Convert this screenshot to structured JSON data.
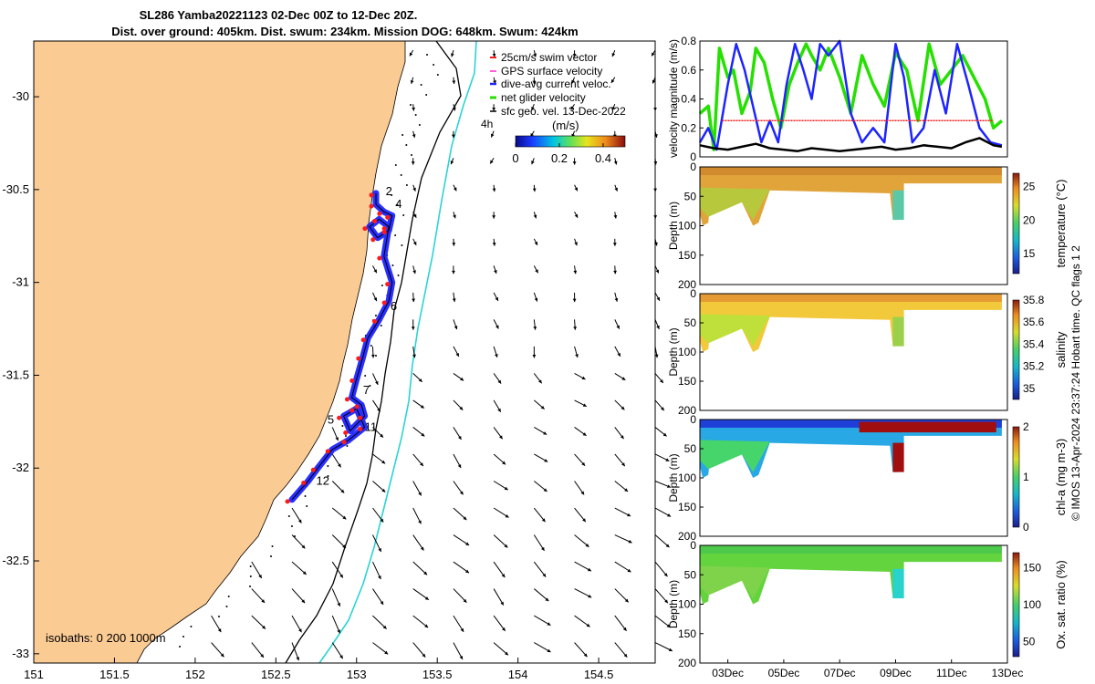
{
  "header": {
    "line1": "SL286 Yamba20221123 02-Dec 00Z to 12-Dec 20Z.",
    "line2": "Dist. over ground: 405km. Dist. swum: 234km. Mission DOG: 648km. Swum: 424km"
  },
  "colors": {
    "land": "#fbcb94",
    "track": "#1d24ff",
    "swim": "#ff1a1a",
    "net": "#25e000",
    "isobath1000": "#2cd3d3",
    "isobath200": "#000000"
  },
  "chart_data": [
    {
      "type": "scatter",
      "name": "map",
      "title": "glider track map",
      "xlim": [
        151,
        154.85
      ],
      "ylim": [
        -33.05,
        -29.7
      ],
      "xticks": [
        "151",
        "151.5",
        "152",
        "152.5",
        "153",
        "153.5",
        "154",
        "154.5"
      ],
      "yticks": [
        "-30",
        "-30.5",
        "-31",
        "-31.5",
        "-32",
        "-32.5",
        "-33"
      ],
      "legend": [
        "25cm/s swim vector",
        "GPS surface velocity",
        "dive-avg current veloc.",
        "net glider velocity",
        "sfc geo. vel. 13-Dec-2022"
      ],
      "colorbar": {
        "label": "(m/s)",
        "ticks": [
          "0",
          "0.2",
          "0.4"
        ],
        "range": [
          0,
          0.5
        ]
      },
      "isobath_note": "isobaths: 0   200  1000m",
      "time_label": "4h",
      "track_labels": [
        {
          "label": "2",
          "lon": 153.18,
          "lat": -30.53
        },
        {
          "label": "4",
          "lon": 153.24,
          "lat": -30.6
        },
        {
          "label": "6",
          "lon": 153.21,
          "lat": -31.15
        },
        {
          "label": "7",
          "lon": 153.04,
          "lat": -31.6
        },
        {
          "label": "5",
          "lon": 152.82,
          "lat": -31.76
        },
        {
          "label": "11",
          "lon": 153.05,
          "lat": -31.8
        },
        {
          "label": "12",
          "lon": 152.75,
          "lat": -32.09
        }
      ],
      "track": [
        [
          153.12,
          -30.52
        ],
        [
          153.12,
          -30.58
        ],
        [
          153.17,
          -30.62
        ],
        [
          153.22,
          -30.64
        ],
        [
          153.2,
          -30.72
        ],
        [
          153.13,
          -30.76
        ],
        [
          153.08,
          -30.7
        ],
        [
          153.14,
          -30.66
        ],
        [
          153.2,
          -30.7
        ],
        [
          153.17,
          -30.86
        ],
        [
          153.22,
          -31.0
        ],
        [
          153.2,
          -31.1
        ],
        [
          153.14,
          -31.2
        ],
        [
          153.07,
          -31.3
        ],
        [
          153.04,
          -31.4
        ],
        [
          153.0,
          -31.52
        ],
        [
          152.97,
          -31.62
        ],
        [
          153.03,
          -31.66
        ],
        [
          153.05,
          -31.72
        ],
        [
          152.96,
          -31.8
        ],
        [
          152.92,
          -31.72
        ],
        [
          153.0,
          -31.68
        ],
        [
          153.05,
          -31.78
        ],
        [
          152.95,
          -31.85
        ],
        [
          152.85,
          -31.9
        ],
        [
          152.76,
          -32.0
        ],
        [
          152.7,
          -32.07
        ],
        [
          152.6,
          -32.17
        ]
      ]
    },
    {
      "type": "line",
      "name": "velocity-panel",
      "ylabel": "velocity magnitude (m/s)",
      "ylim": [
        0,
        0.8
      ],
      "yticks": [
        "0",
        "0.2",
        "0.4",
        "0.6",
        "0.8"
      ],
      "x_days": [
        2.0,
        12.8
      ],
      "series": [
        {
          "name": "net glider velocity",
          "x": [
            2.0,
            2.3,
            2.5,
            2.7,
            3.0,
            3.2,
            3.5,
            3.8,
            4.0,
            4.3,
            4.6,
            4.9,
            5.2,
            5.5,
            5.8,
            6.0,
            6.3,
            6.6,
            7.0,
            7.4,
            7.8,
            8.2,
            8.6,
            9.0,
            9.4,
            9.8,
            10.2,
            10.6,
            11.0,
            11.4,
            11.8,
            12.2,
            12.5,
            12.8
          ],
          "y": [
            0.3,
            0.35,
            0.05,
            0.75,
            0.55,
            0.6,
            0.3,
            0.45,
            0.75,
            0.65,
            0.4,
            0.2,
            0.5,
            0.65,
            0.78,
            0.7,
            0.6,
            0.75,
            0.55,
            0.3,
            0.7,
            0.5,
            0.35,
            0.72,
            0.6,
            0.25,
            0.78,
            0.5,
            0.6,
            0.7,
            0.55,
            0.4,
            0.2,
            0.25
          ]
        },
        {
          "name": "dive-avg current veloc.",
          "x": [
            2.0,
            2.3,
            2.6,
            3.0,
            3.3,
            3.6,
            3.9,
            4.2,
            4.5,
            4.8,
            5.1,
            5.4,
            5.7,
            6.0,
            6.3,
            6.6,
            7.0,
            7.4,
            7.8,
            8.2,
            8.6,
            9.0,
            9.3,
            9.6,
            10.0,
            10.4,
            10.8,
            11.2,
            11.6,
            12.0,
            12.4,
            12.8
          ],
          "y": [
            0.1,
            0.2,
            0.05,
            0.5,
            0.78,
            0.6,
            0.35,
            0.1,
            0.25,
            0.1,
            0.5,
            0.78,
            0.6,
            0.4,
            0.78,
            0.7,
            0.8,
            0.3,
            0.1,
            0.2,
            0.1,
            0.78,
            0.55,
            0.1,
            0.2,
            0.6,
            0.3,
            0.78,
            0.5,
            0.2,
            0.1,
            0.08
          ]
        },
        {
          "name": "sfc geo. vel.",
          "x": [
            2.0,
            2.5,
            3.0,
            3.5,
            4.0,
            4.5,
            5.0,
            5.5,
            6.0,
            6.5,
            7.0,
            7.5,
            8.0,
            8.5,
            9.0,
            9.5,
            10.0,
            10.5,
            11.0,
            11.5,
            12.0,
            12.5,
            12.8
          ],
          "y": [
            0.08,
            0.06,
            0.05,
            0.07,
            0.09,
            0.06,
            0.05,
            0.04,
            0.06,
            0.05,
            0.04,
            0.05,
            0.06,
            0.07,
            0.05,
            0.06,
            0.08,
            0.07,
            0.06,
            0.1,
            0.13,
            0.08,
            0.07
          ]
        },
        {
          "name": "25cm/s swim vector",
          "x": [
            2.8,
            12.5
          ],
          "y": [
            0.25,
            0.25
          ]
        }
      ]
    },
    {
      "type": "heatmap",
      "name": "temperature-panel",
      "ylabel": "Depth (m)",
      "cbar_label": "temperature (°C)",
      "clim": [
        12,
        27
      ],
      "cbar_ticks": [
        "15",
        "20",
        "25"
      ],
      "ylim": [
        0,
        200
      ],
      "yticks": [
        "0",
        "50",
        "100",
        "150",
        "200"
      ]
    },
    {
      "type": "heatmap",
      "name": "salinity-panel",
      "ylabel": "Depth (m)",
      "cbar_label": "salinity",
      "clim": [
        34.9,
        35.8
      ],
      "cbar_ticks": [
        "35",
        "35.2",
        "35.4",
        "35.6",
        "35.8"
      ],
      "ylim": [
        0,
        200
      ],
      "yticks": [
        "0",
        "50",
        "100",
        "150",
        "200"
      ]
    },
    {
      "type": "heatmap",
      "name": "chla-panel",
      "ylabel": "Depth (m)",
      "cbar_label": "chl-a (mg m-3)",
      "clim": [
        0,
        2
      ],
      "cbar_ticks": [
        "0",
        "1",
        "2"
      ],
      "ylim": [
        0,
        200
      ],
      "yticks": [
        "0",
        "50",
        "100",
        "150",
        "200"
      ]
    },
    {
      "type": "heatmap",
      "name": "oxygen-panel",
      "ylabel": "Depth (m)",
      "cbar_label": "Ox. sat. ratio (%)",
      "clim": [
        30,
        170
      ],
      "cbar_ticks": [
        "50",
        "100",
        "150"
      ],
      "ylim": [
        0,
        200
      ],
      "yticks": [
        "0",
        "50",
        "100",
        "150",
        "200"
      ],
      "xticks": [
        "03Dec",
        "05Dec",
        "07Dec",
        "09Dec",
        "11Dec",
        "13Dec"
      ]
    }
  ],
  "side_note": "© IMOS 13-Apr-2024 23:37:24 Hobart time. QC flags 1  2"
}
